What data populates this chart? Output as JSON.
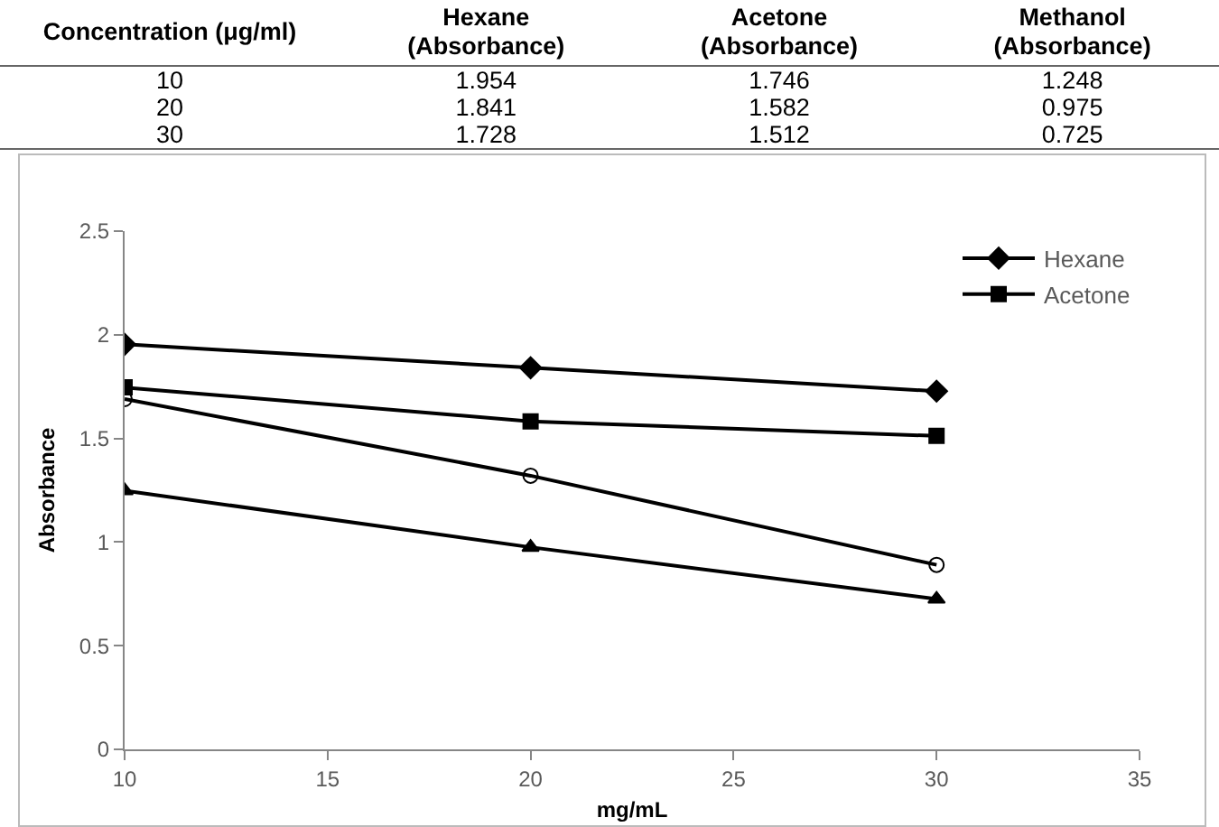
{
  "chart_data": [
    {
      "type": "other",
      "xlabel": "Concentration (μg/ml)",
      "categories": [
        "10",
        "20",
        "30"
      ],
      "data_labels": true,
      "series": [
        {
          "name": "Hexane (Absorbance)",
          "values": [
            1.954,
            1.841,
            1.728
          ]
        },
        {
          "name": "Acetone (Absorbance)",
          "values": [
            1.746,
            1.582,
            1.512
          ]
        },
        {
          "name": "Methanol (Absorbance)",
          "values": [
            1.248,
            0.975,
            0.725
          ]
        }
      ]
    },
    {
      "type": "line",
      "x": [
        10,
        20,
        30
      ],
      "xlabel": "mg/mL",
      "ylabel": "Absorbance",
      "xlim": [
        10,
        35
      ],
      "xticks": [
        10,
        15,
        20,
        25,
        30,
        35
      ],
      "ylim": [
        0,
        2.5
      ],
      "yticks": [
        0,
        0.5,
        1,
        1.5,
        2,
        2.5
      ],
      "grid": false,
      "legend": "top right",
      "line_style": "solid",
      "series": [
        {
          "name": "Hexane",
          "color": "#000000",
          "marker": "diamond",
          "values": [
            1.954,
            1.841,
            1.728
          ]
        },
        {
          "name": "Acetone",
          "color": "#000000",
          "marker": "square",
          "values": [
            1.746,
            1.582,
            1.512
          ]
        },
        {
          "color": "#000000",
          "marker": "triangle",
          "values": [
            1.248,
            0.975,
            0.725
          ]
        },
        {
          "color": "#000000",
          "marker": "circle-open",
          "values": [
            1.69,
            1.32,
            0.89
          ]
        }
      ]
    }
  ]
}
